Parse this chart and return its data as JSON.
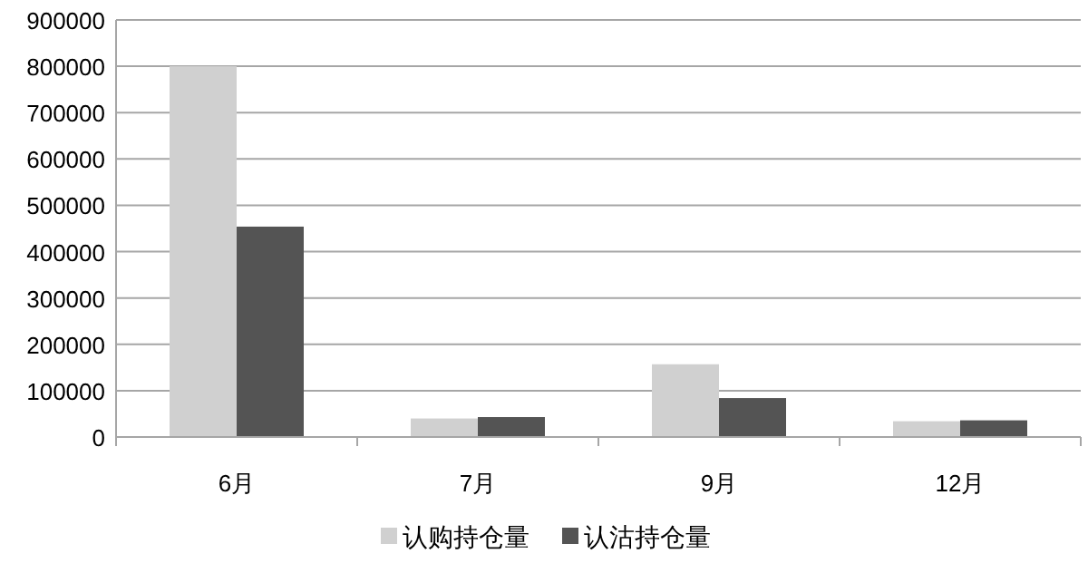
{
  "chart_data": {
    "type": "bar",
    "categories": [
      "6月",
      "7月",
      "9月",
      "12月"
    ],
    "series": [
      {
        "name": "认购持仓量",
        "color": "#d0d0d0",
        "values": [
          800000,
          40000,
          157000,
          34000
        ]
      },
      {
        "name": "认沽持仓量",
        "color": "#545454",
        "values": [
          454000,
          43000,
          84000,
          36000
        ]
      }
    ],
    "ylim": [
      0,
      900000
    ],
    "yticks": [
      0,
      100000,
      200000,
      300000,
      400000,
      500000,
      600000,
      700000,
      800000,
      900000
    ],
    "grid": "y",
    "legend": "bottom"
  }
}
